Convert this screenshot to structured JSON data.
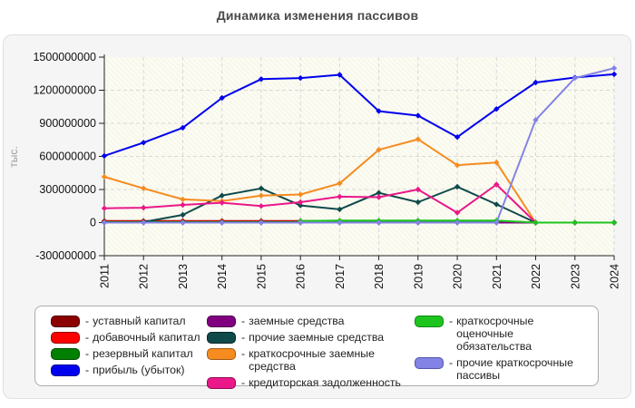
{
  "title": "Динамика изменения пассивов",
  "y_axis": {
    "unit_label": "тыс.",
    "ticks": [
      {
        "value": 1500000000,
        "label": "1500000000"
      },
      {
        "value": 1200000000,
        "label": "1200000000"
      },
      {
        "value": 900000000,
        "label": "900000000"
      },
      {
        "value": 600000000,
        "label": "600000000"
      },
      {
        "value": 300000000,
        "label": "300000000"
      },
      {
        "value": 0,
        "label": "0"
      },
      {
        "value": -300000000,
        "label": "-300000000"
      }
    ]
  },
  "chart_data": {
    "type": "line",
    "title": "Динамика изменения пассивов",
    "xlabel": "",
    "ylabel": "тыс.",
    "ylim": [
      -300000000,
      1500000000
    ],
    "grid": true,
    "legend_position": "bottom",
    "x": [
      "2011",
      "2012",
      "2013",
      "2014",
      "2015",
      "2016",
      "2017",
      "2018",
      "2019",
      "2020",
      "2021",
      "2022",
      "2023",
      "2024"
    ],
    "series": [
      {
        "name": "уставный капитал",
        "color": "#8B0000",
        "edge": "#4D0000",
        "values": [
          15000000,
          15000000,
          15000000,
          15000000,
          15000000,
          15000000,
          15000000,
          15000000,
          15000000,
          15000000,
          15000000,
          0,
          0,
          0
        ]
      },
      {
        "name": "добавочный капитал",
        "color": "#FF0000",
        "edge": "#990000",
        "values": [
          10000000,
          10000000,
          10000000,
          10000000,
          10000000,
          10000000,
          10000000,
          10000000,
          10000000,
          10000000,
          10000000,
          0,
          0,
          0
        ]
      },
      {
        "name": "резервный капитал",
        "color": "#008000",
        "edge": "#004D00",
        "values": [
          5000000,
          5000000,
          5000000,
          5000000,
          5000000,
          5000000,
          5000000,
          5000000,
          5000000,
          5000000,
          5000000,
          0,
          0,
          0
        ]
      },
      {
        "name": "прибыль (убыток)",
        "color": "#0000EE",
        "edge": "#000099",
        "values": [
          605000000,
          725000000,
          860000000,
          1130000000,
          1300000000,
          1310000000,
          1340000000,
          1010000000,
          970000000,
          775000000,
          1030000000,
          1270000000,
          1315000000,
          1345000000
        ]
      },
      {
        "name": "заемные средства",
        "color": "#800080",
        "edge": "#4D004D",
        "values": [
          0,
          0,
          0,
          0,
          0,
          0,
          0,
          0,
          0,
          0,
          0,
          0,
          0,
          0
        ]
      },
      {
        "name": "прочие заемные средства",
        "color": "#0F4A4A",
        "edge": "#072727",
        "values": [
          null,
          5000000,
          70000000,
          245000000,
          310000000,
          155000000,
          120000000,
          270000000,
          185000000,
          325000000,
          165000000,
          0,
          null,
          null
        ]
      },
      {
        "name": "краткосрочные заемные средства",
        "color": "#F68B1F",
        "edge": "#A35A10",
        "values": [
          415000000,
          310000000,
          210000000,
          195000000,
          245000000,
          255000000,
          355000000,
          660000000,
          755000000,
          520000000,
          545000000,
          0,
          null,
          null
        ]
      },
      {
        "name": "кредиторская задолженность",
        "color": "#EA1889",
        "edge": "#8F0B52",
        "values": [
          130000000,
          135000000,
          160000000,
          180000000,
          150000000,
          185000000,
          235000000,
          230000000,
          300000000,
          90000000,
          345000000,
          0,
          null,
          null
        ]
      },
      {
        "name": "краткосрочные оценочные обязательства",
        "color": "#1EC41E",
        "edge": "#128812",
        "values": [
          null,
          null,
          null,
          null,
          null,
          15000000,
          18000000,
          18000000,
          18000000,
          18000000,
          18000000,
          0,
          0,
          0
        ]
      },
      {
        "name": "прочие краткосрочные пассивы",
        "color": "#8383E6",
        "edge": "#5555A8",
        "values": [
          0,
          0,
          0,
          0,
          0,
          0,
          0,
          0,
          0,
          0,
          0,
          930000000,
          1310000000,
          1400000000
        ]
      }
    ]
  },
  "legend": {
    "prefix": "- ",
    "columns": [
      [
        0,
        1,
        2,
        3
      ],
      [
        4,
        5,
        6,
        7
      ],
      [
        8,
        9
      ]
    ]
  }
}
